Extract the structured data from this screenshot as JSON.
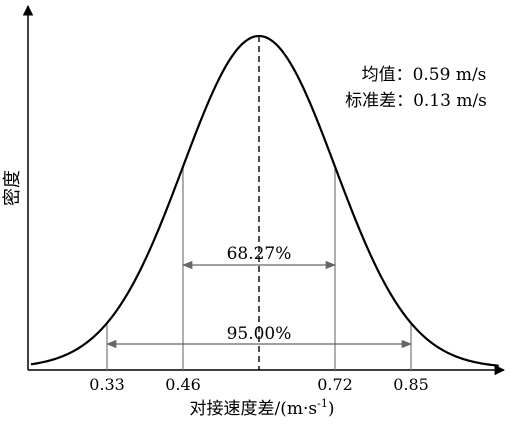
{
  "chart_data": {
    "type": "area",
    "title": "",
    "xlabel": "对接速度差/(m·s",
    "xlabel_sup": "-1",
    "xlabel_close": ")",
    "ylabel": "密度",
    "mean": 0.59,
    "std": 0.13,
    "xlim": [
      0.2,
      1.0
    ],
    "x_ticks": [
      0.33,
      0.46,
      0.72,
      0.85
    ],
    "x_tick_labels": [
      "0.33",
      "0.46",
      "0.72",
      "0.85"
    ],
    "annotations": {
      "mean_text": "均值：0.59 m/s",
      "std_text": "标准差：0.13 m/s",
      "inner_interval": {
        "from": 0.46,
        "to": 0.72,
        "label": "68.27%"
      },
      "outer_interval": {
        "from": 0.33,
        "to": 0.85,
        "label": "95.00%"
      }
    },
    "grid": false,
    "legend": "none"
  }
}
